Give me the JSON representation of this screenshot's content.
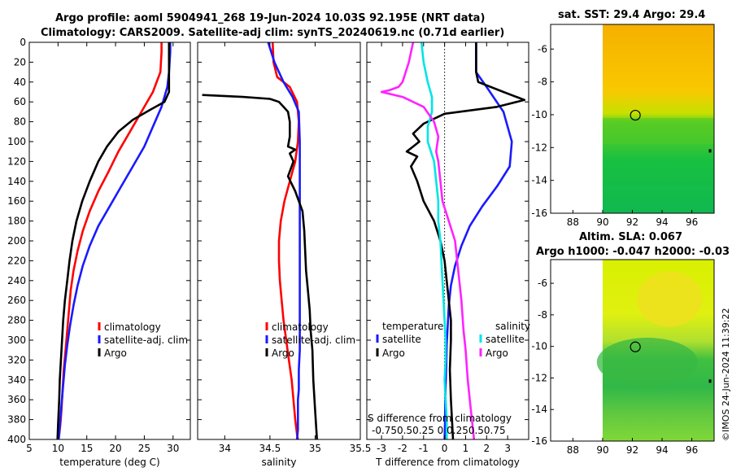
{
  "header": {
    "line1": "Argo profile: aoml 5904941_268 19-Jun-2024 10.03S 92.195E (NRT data)",
    "line2": "Climatology: CARS2009. Satellite-adj clim: synTS_20240619.nc (0.71d earlier)"
  },
  "sst_title": "sat. SST: 29.4 Argo: 29.4",
  "sla_title1": "Altim. SLA: 0.067",
  "sla_title2": "Argo h1000: -0.047 h2000: -0.03",
  "watermark": "©IMOS 24-Jun-2024 11:39:22",
  "colors": {
    "argo": "#000000",
    "clim": "#ff0000",
    "sat": "#1a1aff",
    "sal_sat": "#00e5e5",
    "sal_argo": "#ff22ff"
  },
  "chart_data": [
    {
      "type": "line",
      "id": "temperature",
      "xlabel": "temperature (deg C)",
      "ylabel": "",
      "xlim": [
        5,
        33
      ],
      "ylim": [
        400,
        0
      ],
      "xticks": [
        5,
        10,
        15,
        20,
        25,
        30
      ],
      "yticks": [
        0,
        20,
        40,
        60,
        80,
        100,
        120,
        140,
        160,
        180,
        200,
        220,
        240,
        260,
        280,
        300,
        320,
        340,
        360,
        380,
        400
      ],
      "legend": [
        "climatology",
        "satellite-adj. clim",
        "Argo"
      ],
      "series": [
        {
          "name": "climatology",
          "color": "clim",
          "x": [
            28.0,
            28.0,
            27.8,
            26.5,
            24.5,
            22.5,
            20.5,
            18.8,
            17.0,
            15.5,
            14.3,
            13.4,
            12.7,
            12.2,
            11.9,
            11.6,
            11.3,
            11.0,
            10.8,
            10.6,
            10.4,
            10.2,
            10.1
          ],
          "y": [
            0,
            10,
            30,
            50,
            70,
            90,
            110,
            130,
            150,
            170,
            190,
            210,
            230,
            250,
            270,
            290,
            310,
            330,
            350,
            370,
            385,
            395,
            400
          ]
        },
        {
          "name": "satellite-adj. clim",
          "color": "sat",
          "x": [
            29.5,
            29.5,
            29.3,
            29.0,
            28.0,
            26.5,
            25.0,
            23.0,
            21.0,
            19.0,
            17.0,
            15.5,
            14.3,
            13.4,
            12.7,
            12.1,
            11.6,
            11.2,
            10.9,
            10.6,
            10.4,
            10.2,
            10.1
          ],
          "y": [
            0,
            10,
            30,
            45,
            65,
            85,
            105,
            125,
            145,
            165,
            185,
            205,
            225,
            245,
            265,
            285,
            305,
            325,
            345,
            365,
            380,
            395,
            400
          ]
        },
        {
          "name": "Argo",
          "color": "argo",
          "x": [
            29.3,
            29.3,
            29.3,
            29.3,
            28.5,
            26.0,
            23.0,
            20.5,
            18.5,
            17.0,
            15.5,
            14.2,
            13.2,
            12.5,
            12.0,
            11.6,
            11.2,
            10.9,
            10.7,
            10.5,
            10.3,
            10.2,
            10.0,
            9.9
          ],
          "y": [
            0,
            10,
            30,
            50,
            60,
            68,
            78,
            90,
            105,
            120,
            140,
            160,
            180,
            200,
            220,
            240,
            260,
            280,
            300,
            320,
            340,
            360,
            385,
            400
          ]
        }
      ]
    },
    {
      "type": "line",
      "id": "salinity",
      "xlabel": "salinity",
      "xlim": [
        33.7,
        35.5
      ],
      "ylim": [
        400,
        0
      ],
      "xticks": [
        34,
        34.5,
        35,
        35.5
      ],
      "legend": [
        "climatology",
        "satellite-adj. clim",
        "Argo"
      ],
      "series": [
        {
          "name": "climatology",
          "color": "clim",
          "x": [
            34.53,
            34.54,
            34.58,
            34.72,
            34.8,
            34.82,
            34.81,
            34.78,
            34.72,
            34.66,
            34.62,
            34.6,
            34.6,
            34.61,
            34.63,
            34.65,
            34.68,
            34.71,
            34.74,
            34.76,
            34.78,
            34.8,
            34.81
          ],
          "y": [
            0,
            20,
            35,
            45,
            60,
            80,
            100,
            120,
            140,
            160,
            180,
            200,
            220,
            240,
            260,
            280,
            300,
            320,
            340,
            360,
            380,
            395,
            400
          ]
        },
        {
          "name": "satellite-adj. clim",
          "color": "sat",
          "x": [
            34.48,
            34.55,
            34.65,
            34.75,
            34.82,
            34.83,
            34.83,
            34.83,
            34.83,
            34.83,
            34.83,
            34.83,
            34.83,
            34.83,
            34.82,
            34.82,
            34.81,
            34.81,
            34.81,
            34.81,
            34.8
          ],
          "y": [
            0,
            20,
            40,
            55,
            70,
            100,
            130,
            160,
            190,
            220,
            250,
            270,
            290,
            310,
            330,
            350,
            360,
            370,
            380,
            390,
            400
          ]
        },
        {
          "name": "Argo",
          "color": "argo",
          "x": [
            33.75,
            34.2,
            34.5,
            34.6,
            34.65,
            34.7,
            34.72,
            34.72,
            34.7,
            34.78,
            34.72,
            34.76,
            34.7,
            34.78,
            34.86,
            34.88,
            34.89,
            34.9,
            34.92,
            34.94,
            34.95,
            34.97,
            34.98,
            35.0,
            35.02
          ],
          "y": [
            53,
            55,
            57,
            60,
            65,
            70,
            80,
            95,
            105,
            108,
            112,
            120,
            135,
            150,
            170,
            190,
            210,
            230,
            250,
            270,
            290,
            310,
            340,
            370,
            400
          ]
        }
      ]
    },
    {
      "type": "line",
      "id": "difference",
      "xlabel": "T difference from climatology",
      "xlim": [
        -3.7,
        4.0
      ],
      "ylim": [
        400,
        0
      ],
      "xticks": [
        -3,
        -2,
        -1,
        0,
        1,
        2,
        3
      ],
      "secondary_xlabel": "S difference from climatology",
      "secondary_ticks": "-0.750.50.25 0 0.250.50.75",
      "legend": [
        "temperature",
        "satellite",
        "Argo",
        "salinity",
        "satellite",
        "Argo"
      ],
      "series": [
        {
          "name": "T satellite",
          "color": "sat",
          "x": [
            1.5,
            1.5,
            1.5,
            2.0,
            2.8,
            3.2,
            3.1,
            2.5,
            1.8,
            1.2,
            0.8,
            0.5,
            0.3,
            0.2,
            0.15,
            0.1,
            0.08,
            0.05,
            0.03,
            0.02,
            0.0
          ],
          "y": [
            0,
            15,
            30,
            45,
            70,
            100,
            125,
            145,
            165,
            185,
            205,
            225,
            245,
            265,
            285,
            305,
            325,
            345,
            365,
            385,
            400
          ]
        },
        {
          "name": "T Argo",
          "color": "argo",
          "x": [
            1.5,
            1.5,
            1.5,
            1.6,
            2.8,
            3.8,
            2.5,
            0.0,
            -1.0,
            -1.5,
            -1.2,
            -1.5,
            -1.8,
            -1.3,
            -1.6,
            -1.3,
            -1.0,
            -0.5,
            -0.2,
            0.0,
            0.1,
            0.2,
            0.3,
            0.3,
            0.25,
            0.3,
            0.35,
            0.4
          ],
          "y": [
            0,
            15,
            30,
            40,
            50,
            58,
            65,
            72,
            82,
            92,
            100,
            105,
            110,
            115,
            125,
            140,
            160,
            180,
            200,
            220,
            240,
            260,
            280,
            300,
            330,
            360,
            380,
            400
          ]
        },
        {
          "name": "S satellite",
          "color": "sal_sat",
          "x": [
            -1.1,
            -1.0,
            -0.8,
            -0.6,
            -0.6,
            -0.8,
            -0.8,
            -0.5,
            -0.4,
            -0.3,
            -0.3,
            -0.2,
            -0.15,
            -0.1,
            -0.05,
            0.0,
            0.05,
            0.05,
            0.0,
            0.05,
            0.1,
            0.1
          ],
          "y": [
            0,
            20,
            40,
            55,
            70,
            85,
            100,
            120,
            140,
            160,
            180,
            200,
            220,
            240,
            260,
            280,
            300,
            320,
            340,
            360,
            380,
            400
          ]
        },
        {
          "name": "S Argo",
          "color": "sal_argo",
          "x": [
            -1.5,
            -1.7,
            -2.0,
            -2.2,
            -2.6,
            -3.0,
            -2.0,
            -1.0,
            -0.5,
            -0.3,
            -0.4,
            -0.3,
            -0.2,
            -0.1,
            0.2,
            0.5,
            0.6,
            0.7,
            0.8,
            0.9,
            1.0,
            1.1,
            1.2,
            1.3,
            1.4
          ],
          "y": [
            0,
            20,
            40,
            45,
            48,
            50,
            55,
            65,
            80,
            95,
            110,
            120,
            140,
            160,
            180,
            200,
            220,
            240,
            260,
            290,
            310,
            340,
            360,
            380,
            400
          ]
        }
      ]
    },
    {
      "type": "heatmap",
      "id": "sst_map",
      "title": "sat. SST: 29.4 Argo: 29.4",
      "xlim": [
        86.5,
        97.5
      ],
      "ylim": [
        -16,
        -4.5
      ],
      "xticks": [
        88,
        90,
        92,
        94,
        96
      ],
      "yticks": [
        -6,
        -8,
        -10,
        -12,
        -14,
        -16
      ],
      "float_position": [
        92.2,
        -10.03
      ]
    },
    {
      "type": "heatmap",
      "id": "sla_map",
      "title": "Altim. SLA: 0.067",
      "xlim": [
        86.5,
        97.5
      ],
      "ylim": [
        -16,
        -4.5
      ],
      "xticks": [
        88,
        90,
        92,
        94,
        96
      ],
      "yticks": [
        -6,
        -8,
        -10,
        -12,
        -14,
        -16
      ],
      "float_position": [
        92.2,
        -10.03
      ]
    }
  ]
}
